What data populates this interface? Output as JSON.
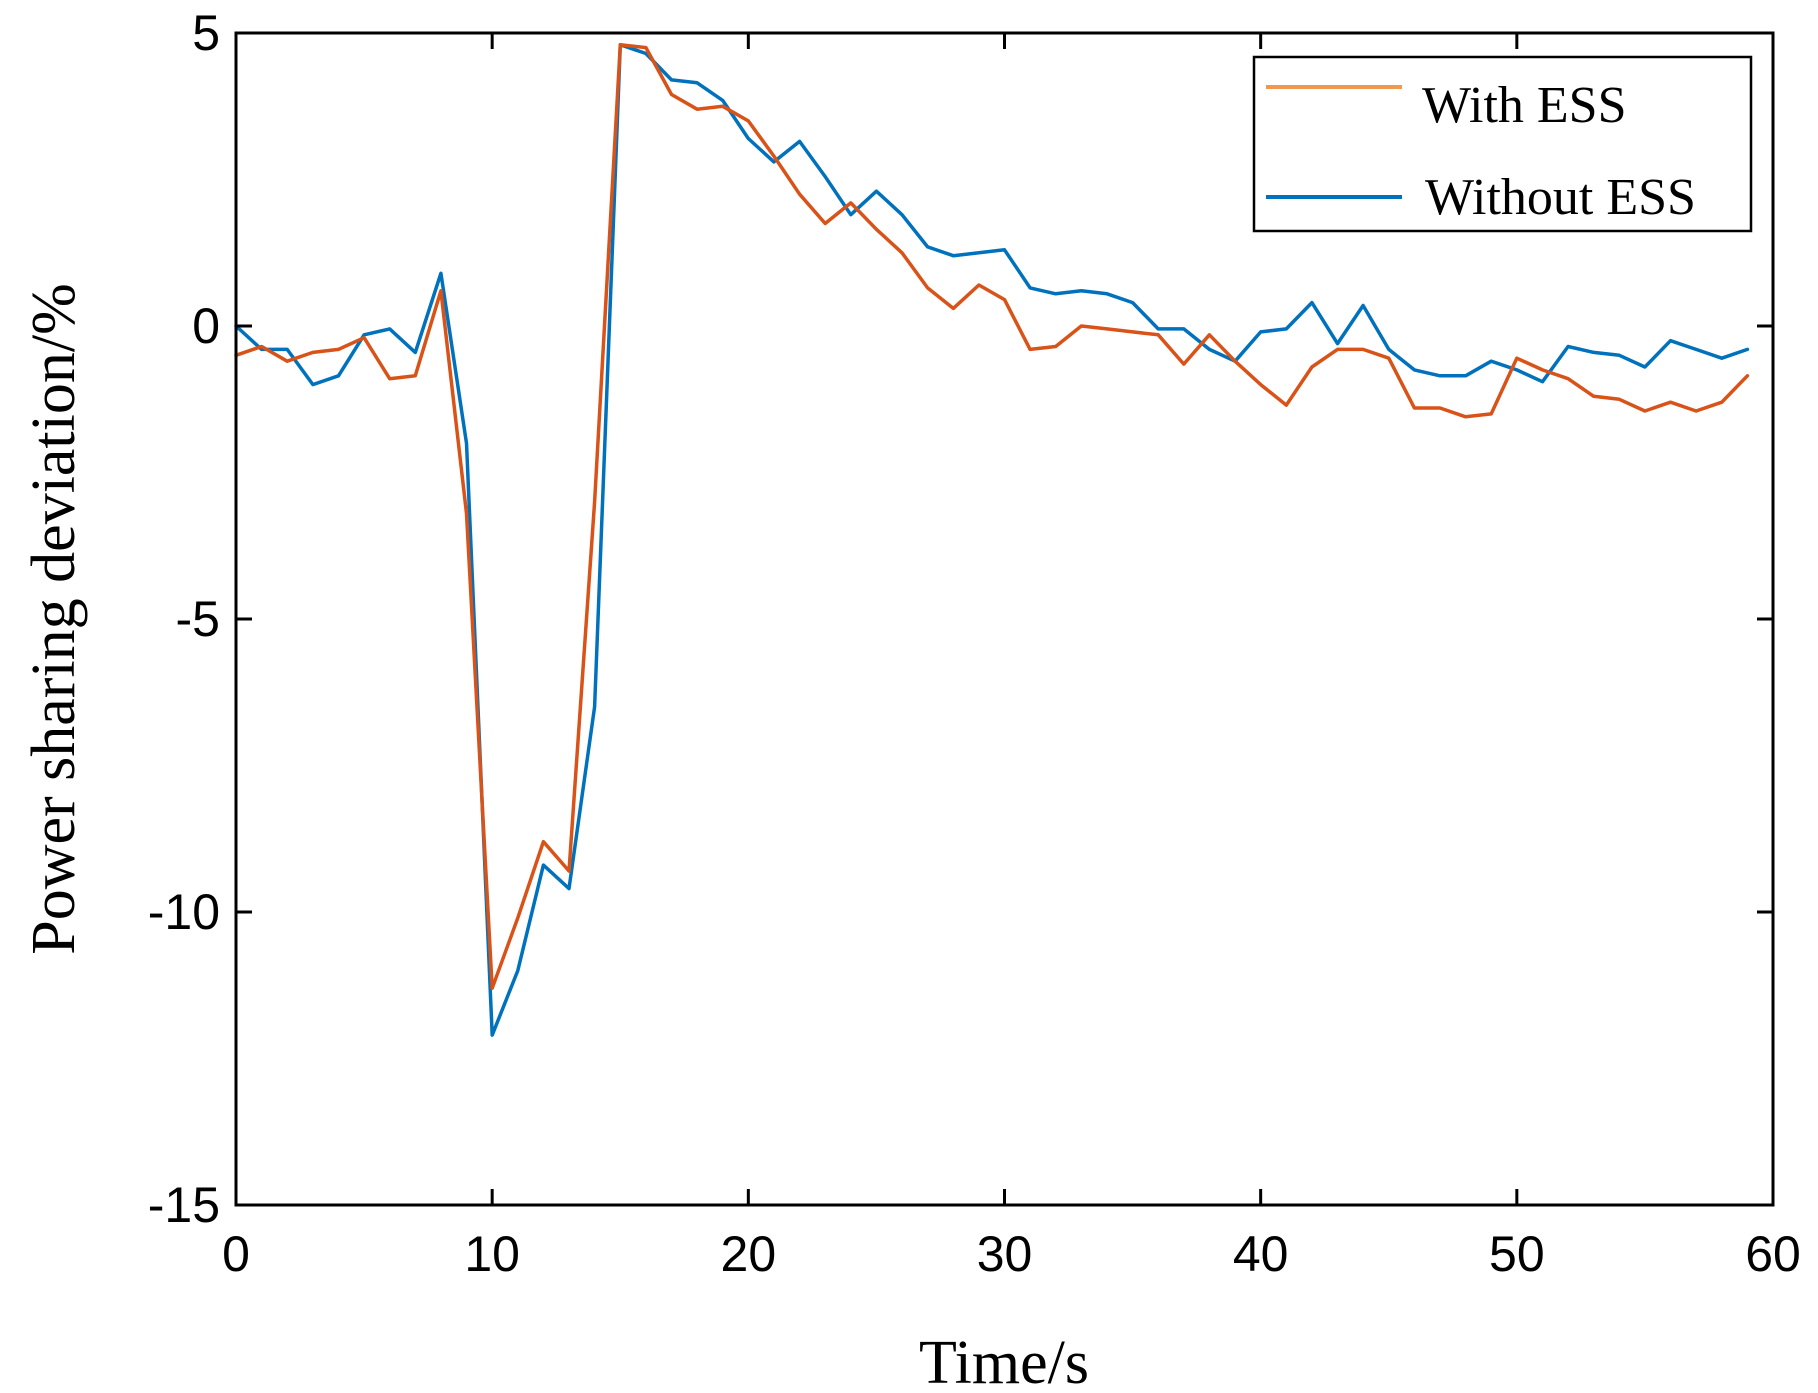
{
  "chart_data": {
    "type": "line",
    "title": "",
    "xlabel": "Time/s",
    "ylabel": "Power sharing deviation/%",
    "xlim": [
      0,
      60
    ],
    "ylim": [
      -15,
      5
    ],
    "xticks": [
      0,
      10,
      20,
      30,
      40,
      50,
      60
    ],
    "yticks": [
      5,
      0,
      -5,
      -10,
      -15
    ],
    "xtick_labels": [
      "0",
      "10",
      "20",
      "30",
      "40",
      "50",
      "60"
    ],
    "ytick_labels": [
      "5",
      "0",
      "-5",
      "-10",
      "-15"
    ],
    "grid": false,
    "legend_position": "top-right",
    "x": [
      0,
      1,
      2,
      3,
      4,
      5,
      6,
      7,
      8,
      9,
      10,
      11,
      12,
      13,
      14,
      15,
      16,
      17,
      18,
      19,
      20,
      21,
      22,
      23,
      24,
      25,
      26,
      27,
      28,
      29,
      30,
      31,
      32,
      33,
      34,
      35,
      36,
      37,
      38,
      39,
      40,
      41,
      42,
      43,
      44,
      45,
      46,
      47,
      48,
      49,
      50,
      51,
      52,
      53,
      54,
      55,
      56,
      57,
      58,
      59
    ],
    "series": [
      {
        "name": "With ESS",
        "color": "#d95319",
        "legend_color": "#f0994e",
        "values": [
          -0.5,
          -0.35,
          -0.6,
          -0.45,
          -0.4,
          -0.2,
          -0.9,
          -0.85,
          0.6,
          -3.2,
          -11.3,
          -10.1,
          -8.8,
          -9.3,
          -3.0,
          4.8,
          4.75,
          3.95,
          3.7,
          3.75,
          3.5,
          2.9,
          2.25,
          1.75,
          2.1,
          1.65,
          1.25,
          0.65,
          0.3,
          0.7,
          0.45,
          -0.4,
          -0.35,
          0.0,
          -0.05,
          -0.1,
          -0.15,
          -0.65,
          -0.15,
          -0.6,
          -1.0,
          -1.35,
          -0.7,
          -0.4,
          -0.4,
          -0.55,
          -1.4,
          -1.4,
          -1.55,
          -1.5,
          -0.55,
          -0.75,
          -0.9,
          -1.2,
          -1.25,
          -1.45,
          -1.3,
          -1.45,
          -1.3,
          -0.85
        ]
      },
      {
        "name": "Without ESS",
        "color": "#0072bd",
        "legend_color": "#0072bd",
        "values": [
          0.0,
          -0.4,
          -0.4,
          -1.0,
          -0.85,
          -0.15,
          -0.05,
          -0.45,
          0.9,
          -2.0,
          -12.1,
          -11.0,
          -9.2,
          -9.6,
          -6.5,
          4.8,
          4.65,
          4.2,
          4.15,
          3.85,
          3.2,
          2.8,
          3.15,
          2.55,
          1.9,
          2.3,
          1.9,
          1.35,
          1.2,
          1.25,
          1.3,
          0.65,
          0.55,
          0.6,
          0.55,
          0.4,
          -0.05,
          -0.05,
          -0.4,
          -0.6,
          -0.1,
          -0.05,
          0.4,
          -0.3,
          0.35,
          -0.4,
          -0.75,
          -0.85,
          -0.85,
          -0.6,
          -0.75,
          -0.95,
          -0.35,
          -0.45,
          -0.5,
          -0.7,
          -0.25,
          -0.4,
          -0.55,
          -0.4
        ]
      }
    ]
  }
}
